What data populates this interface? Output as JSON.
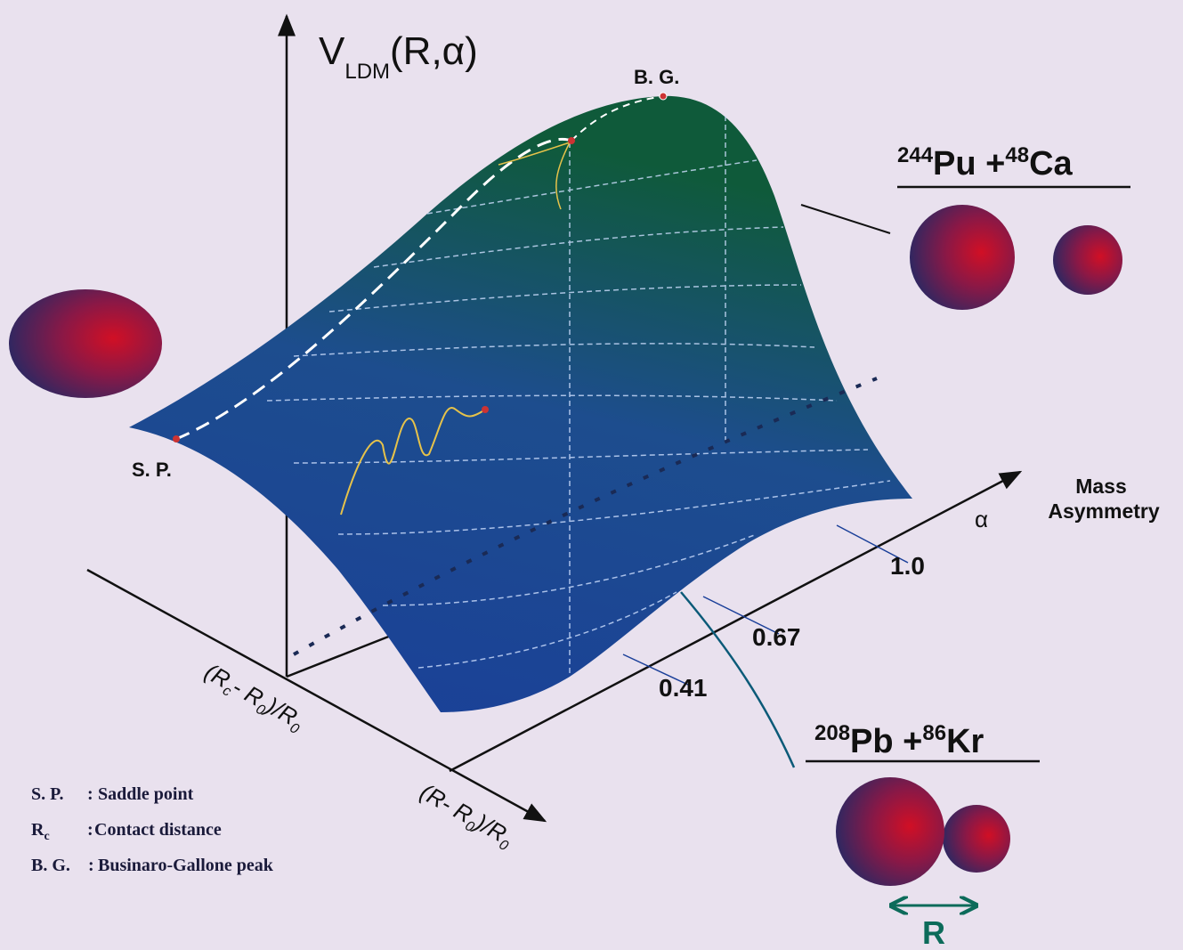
{
  "axis_label": {
    "main": "V",
    "sub": "LDM",
    "args": "(R,α)"
  },
  "points": {
    "bg": "B. G.",
    "sp": "S. P."
  },
  "mass_axis": {
    "symbol": "α",
    "line1": "Mass",
    "line2": "Asymmetry",
    "ticks": [
      "1.0",
      "0.67",
      "0.41"
    ]
  },
  "r_axes": {
    "contact": {
      "open": "(R",
      "sub1": "c",
      "mid": "- R",
      "sub2": "0",
      "close": ")/R",
      "sub3": "0"
    },
    "distance": {
      "open": "(R- R",
      "sub1": "0",
      "close": ")/R",
      "sub2": "0"
    }
  },
  "reactions": [
    {
      "mass_a": "244",
      "symbol_a": "Pu",
      "plus": " +",
      "mass_b": "48",
      "symbol_b": "Ca"
    },
    {
      "mass_a": "208",
      "symbol_a": "Pb",
      "plus": " +",
      "mass_b": "86",
      "symbol_b": "Kr"
    }
  ],
  "separation": "R",
  "legend": [
    {
      "key": "S. P.",
      "sep": ":",
      "text": "Saddle point"
    },
    {
      "key": "R",
      "key_sub": "c",
      "sep": ":",
      "text": "Contact distance"
    },
    {
      "key": "B. G.",
      "sep": ":",
      "text": "Businaro-Gallone peak"
    }
  ]
}
